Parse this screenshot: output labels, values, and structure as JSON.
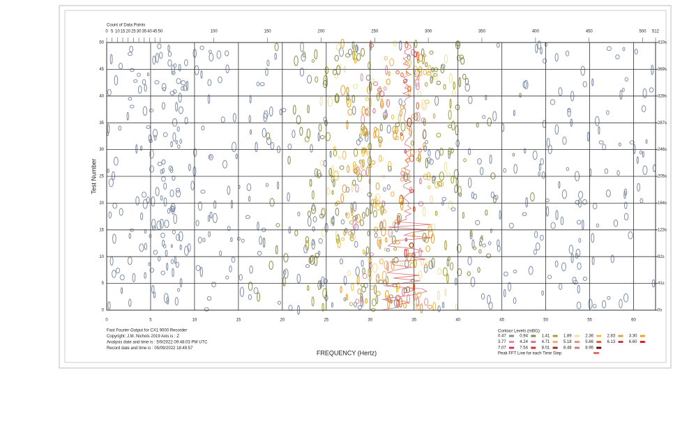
{
  "chart_data": {
    "type": "contour",
    "x_label": "FREQUENCY (Hertz)",
    "y_label": "Test Number",
    "top_axis_label": "Count of Data Points",
    "xlim": [
      0,
      62.5
    ],
    "xticks": [
      0,
      5,
      10,
      15,
      20,
      25,
      30,
      35,
      40,
      45,
      50,
      55,
      60
    ],
    "ylim": [
      0,
      50
    ],
    "yticks": [
      0,
      5,
      10,
      15,
      20,
      25,
      30,
      35,
      40,
      45,
      50
    ],
    "toplim": [
      0,
      512
    ],
    "topticks": [
      0,
      5,
      10,
      15,
      20,
      25,
      30,
      35,
      40,
      45,
      50,
      100,
      150,
      200,
      250,
      300,
      350,
      400,
      450,
      500,
      512
    ],
    "y2lim": [
      0,
      410
    ],
    "y2ticks": [
      {
        "value": 0,
        "label": "0s"
      },
      {
        "value": 41,
        "label": "41s"
      },
      {
        "value": 82,
        "label": "82s"
      },
      {
        "value": 123,
        "label": "123s"
      },
      {
        "value": 164,
        "label": "164s"
      },
      {
        "value": 205,
        "label": "205s"
      },
      {
        "value": 246,
        "label": "246s"
      },
      {
        "value": 287,
        "label": "287s"
      },
      {
        "value": 328,
        "label": "328s"
      },
      {
        "value": 369,
        "label": "369s"
      },
      {
        "value": 410,
        "label": "410s"
      }
    ],
    "grid": true,
    "notes": [
      "Fast Fourier Output for CX1 9000 Recorder",
      "Copyright: J.M. Nichols 2019 Axis is : Z",
      "Analysis date and time is : 5/9/2022 09:48:03 PM  UTC",
      "Record date and time is : 05/09/2022 18:49:57"
    ],
    "legend": {
      "title": "Contour Levels (mBG):",
      "levels": [
        {
          "label": "0.47",
          "color": "#7f8ea6"
        },
        {
          "label": "0.94",
          "color": "#8a8a4a"
        },
        {
          "label": "1.41",
          "color": "#a0a030"
        },
        {
          "label": "1.89",
          "color": "#f0e0a0"
        },
        {
          "label": "2.36",
          "color": "#e8c040"
        },
        {
          "label": "2.83",
          "color": "#e0a040"
        },
        {
          "label": "3.30",
          "color": "#f0a020"
        },
        {
          "label": "3.77",
          "color": "#e090a0"
        },
        {
          "label": "4.24",
          "color": "#e07090"
        },
        {
          "label": "4.71",
          "color": "#f0b060"
        },
        {
          "label": "5.18",
          "color": "#f09070"
        },
        {
          "label": "5.66",
          "color": "#e06030"
        },
        {
          "label": "6.13",
          "color": "#c04040"
        },
        {
          "label": "6.60",
          "color": "#e02020"
        },
        {
          "label": "7.07",
          "color": "#e03060"
        },
        {
          "label": "7.54",
          "color": "#d03040"
        },
        {
          "label": "8.01",
          "color": "#b02020"
        },
        {
          "label": "8.48",
          "color": "#c08080"
        },
        {
          "label": "8.96",
          "color": "#800000"
        }
      ],
      "peak_line": {
        "label": "Peak FFT Line for each Time Step",
        "color": "#e07070"
      }
    }
  }
}
